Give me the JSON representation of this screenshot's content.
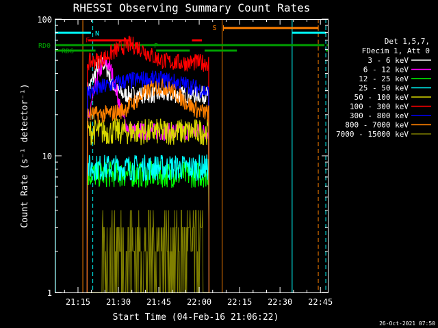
{
  "chart_data": {
    "type": "line",
    "title": "RHESSI Observing Summary Count Rates",
    "xlabel": "Start Time (04-Feb-16 21:06:22)",
    "ylabel": "Count Rate (s⁻¹ detector⁻¹)",
    "x_ticks": [
      "21:15",
      "21:30",
      "21:45",
      "22:00",
      "22:15",
      "22:30",
      "22:45"
    ],
    "x_tick_minutes": [
      15,
      30,
      45,
      60,
      75,
      90,
      105
    ],
    "x_range_minutes": [
      6.37,
      108
    ],
    "y_scale": "log",
    "ylim": [
      1,
      100
    ],
    "y_ticks": [
      "1",
      "10",
      "100"
    ],
    "y_tick_values": [
      1,
      10,
      100
    ],
    "grid": false,
    "legend_position": "right",
    "legend_header": [
      "Det 1,5,7,",
      "FDecim 1, Att 0"
    ],
    "timestamp": "26-Oct-2021 07:50",
    "data_window_minutes": [
      18.5,
      63.5
    ],
    "series": [
      {
        "name": "3 - 6 keV",
        "color": "#ffffff",
        "level": 28,
        "profile": "black"
      },
      {
        "name": "6 - 12 keV",
        "color": "#ff00ff",
        "level": 15,
        "profile": "magenta"
      },
      {
        "name": "12 - 25 keV",
        "color": "#00ff00",
        "level": 7.3,
        "profile": "flat"
      },
      {
        "name": "25 - 50 keV",
        "color": "#00ffff",
        "level": 8.2,
        "profile": "flat"
      },
      {
        "name": "50 - 100 keV",
        "color": "#d8d800",
        "level": 15,
        "profile": "flat"
      },
      {
        "name": "100 - 300 keV",
        "color": "#ff0000",
        "level": 48,
        "profile": "red"
      },
      {
        "name": "300 - 800 keV",
        "color": "#0000ff",
        "level": 29,
        "profile": "blue"
      },
      {
        "name": "800 - 7000 keV",
        "color": "#ff8000",
        "level": 20,
        "profile": "orange"
      },
      {
        "name": "7000 - 15000 keV",
        "color": "#808000",
        "level": 2,
        "profile": "olive"
      }
    ],
    "state_flags": [
      {
        "label": "RD0",
        "color": "#00a000"
      },
      {
        "label": "RD6",
        "color": "#00a000"
      },
      {
        "label": "N",
        "color": "#00ffff"
      },
      {
        "label": "F",
        "color": "#ff0000"
      },
      {
        "label": "P",
        "color": "#00a000"
      },
      {
        "label": "S",
        "color": "#ff8000"
      }
    ],
    "intervals": {
      "rd0": [
        [
          6.37,
          106.5
        ],
        [
          107.3,
          108
        ]
      ],
      "rd6": [
        [
          6.37,
          21.5
        ],
        [
          44,
          56.5
        ],
        [
          62,
          74
        ],
        [
          107,
          107.8
        ]
      ],
      "night": [
        [
          6.37,
          19.8
        ],
        [
          94.5,
          107
        ]
      ],
      "flare": [
        [
          18.8,
          34.5
        ],
        [
          57.3,
          61
        ]
      ],
      "saa": [
        [
          69,
          104.2
        ]
      ]
    },
    "markers": {
      "cyan_solid_minutes": [
        6.6,
        94.5
      ],
      "cyan_dashed_minutes": [
        20.5,
        107
      ],
      "orange_solid_minutes": [
        16.8,
        68.5
      ],
      "orange_dashed_minutes": [
        104.2
      ]
    }
  }
}
